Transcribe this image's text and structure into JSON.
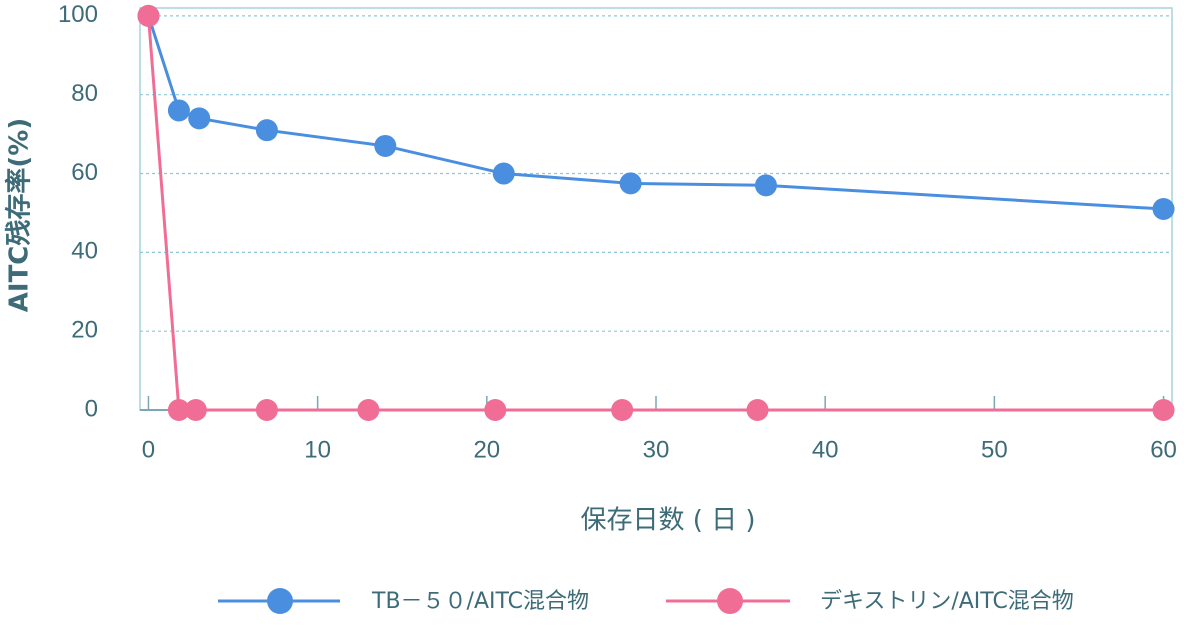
{
  "chart_data": {
    "type": "line",
    "xlabel": "保存日数 ( 日 )",
    "ylabel": "AITC残存率(%)",
    "xlim": [
      -0.5,
      60.5
    ],
    "xticks": [
      0,
      10,
      20,
      30,
      40,
      50,
      60
    ],
    "ylim": [
      0,
      102
    ],
    "yticks": [
      0,
      20,
      40,
      60,
      80,
      100
    ],
    "grid": true,
    "series": [
      {
        "name": "TB－５０/AITC混合物",
        "color": "#4a8fdf",
        "x": [
          0,
          1.8,
          3,
          7,
          14,
          21,
          28.5,
          36.5,
          60
        ],
        "values": [
          100,
          76,
          74,
          71,
          67,
          60,
          57.5,
          57,
          51
        ]
      },
      {
        "name": "デキストリン/AITC混合物",
        "color": "#f06e96",
        "x": [
          0,
          1.8,
          2.8,
          7,
          13,
          20.5,
          28,
          36,
          60
        ],
        "values": [
          100,
          0,
          0,
          0,
          0,
          0,
          0,
          0,
          0
        ]
      }
    ]
  }
}
